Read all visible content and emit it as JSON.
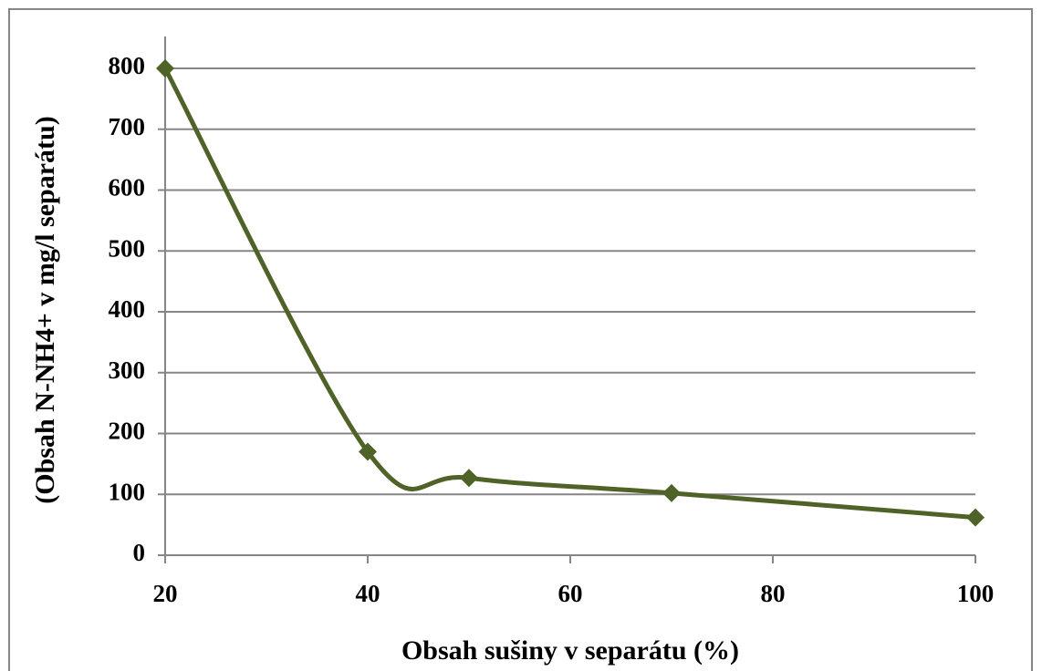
{
  "chart_data": {
    "type": "line",
    "x_label": "Obsah sušiny v separátu (%)",
    "y_label": "(Obsah N-NH4+ v mg/l separátu)",
    "x": [
      20,
      40,
      50,
      70,
      100
    ],
    "series": [
      {
        "color": "#4f6228",
        "values": [
          800,
          170,
          127,
          102,
          62
        ]
      }
    ],
    "xlim": [
      20,
      100
    ],
    "xticks": [
      20,
      40,
      60,
      80,
      100
    ],
    "ylim": [
      0,
      800
    ],
    "yticks": [
      0,
      100,
      200,
      300,
      400,
      500,
      600,
      700,
      800
    ],
    "grid": true
  }
}
